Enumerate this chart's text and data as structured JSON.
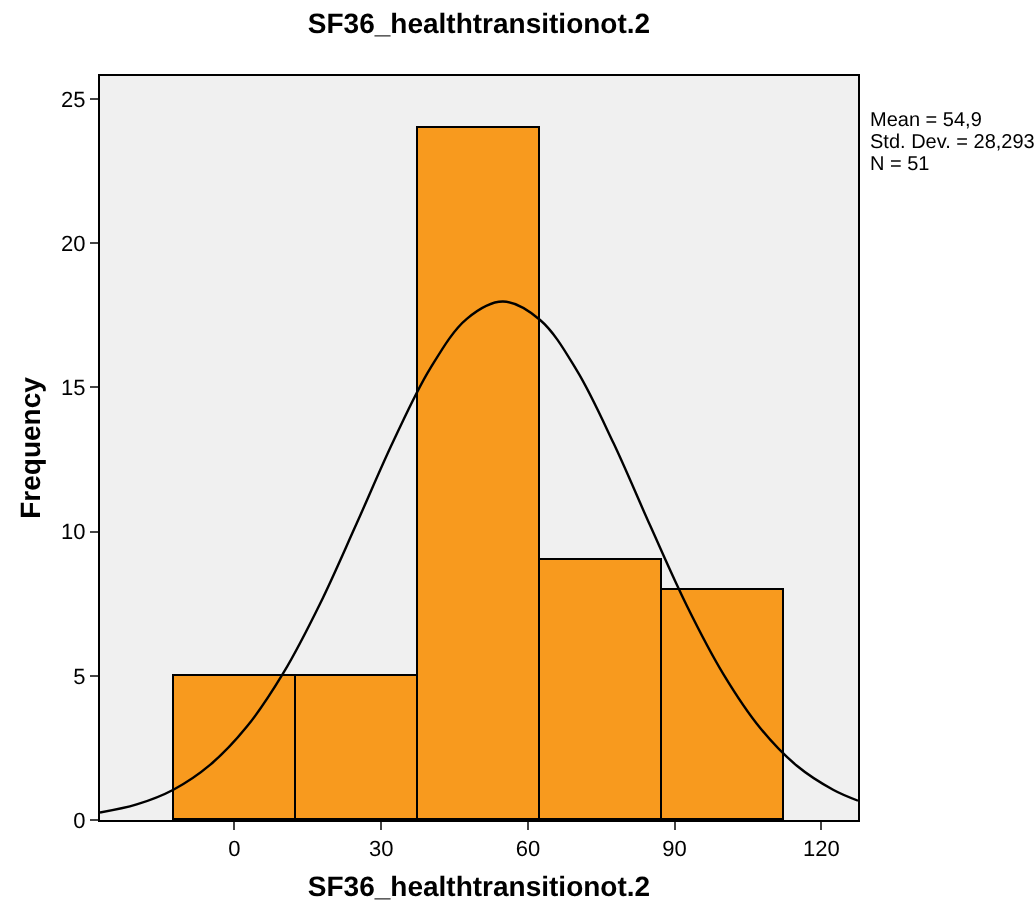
{
  "chart_data": {
    "type": "histogram",
    "title": "SF36_healthtransitionot.2",
    "xlabel": "SF36_healthtransitionot.2",
    "ylabel": "Frequency",
    "bins": [
      -12.5,
      12.5,
      37.5,
      62.5,
      87.5,
      112.5
    ],
    "values": [
      5,
      5,
      24,
      9,
      8
    ],
    "color": "#f89a1e",
    "series": [
      {
        "type": "line",
        "color": "#000000",
        "x": [
          -27.5,
          -20,
          -12.5,
          -5,
          2.5,
          10,
          17.5,
          25,
          32.5,
          40,
          47.5,
          54.9,
          62.5,
          70,
          77.5,
          85,
          92.5,
          100,
          107.5,
          115,
          122.5,
          127.5
        ],
        "values": [
          0.26,
          0.54,
          1.05,
          1.91,
          3.23,
          5.1,
          7.5,
          10.29,
          13.14,
          15.65,
          17.38,
          17.98,
          17.34,
          15.59,
          13.07,
          10.21,
          7.43,
          5.05,
          3.19,
          1.88,
          1.04,
          0.67
        ]
      }
    ],
    "xlim": [
      -27.5,
      127.5
    ],
    "xticks": [
      0,
      30,
      60,
      90,
      120
    ],
    "ylim": [
      0,
      25.8
    ],
    "yticks": [
      0,
      5,
      10,
      15,
      20,
      25
    ],
    "annotations": [
      "Mean = 54,9",
      "Std. Dev. = 28,293",
      "N = 51"
    ]
  }
}
